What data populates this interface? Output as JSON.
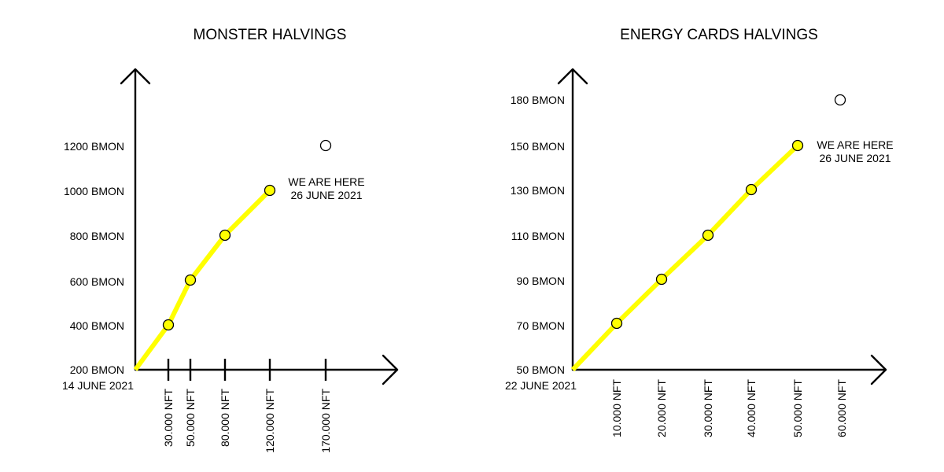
{
  "colors": {
    "line": "#ffff00",
    "marker_fill": "#ffff00",
    "axis": "#000000"
  },
  "chart_data": [
    {
      "type": "line",
      "title": "MONSTER HALVINGS",
      "x_tick_labels": [
        "30.000 NFT",
        "50.000 NFT",
        "80.000 NFT",
        "120.000 NFT",
        "170.000 NFT"
      ],
      "y_tick_labels": [
        "200 BMON",
        "400 BMON",
        "600 BMON",
        "800 BMON",
        "1000 BMON",
        "1200 BMON"
      ],
      "origin_date": "14 JUNE 2021",
      "series": [
        {
          "x": [
            0,
            30000,
            50000,
            80000,
            120000
          ],
          "y": [
            200,
            400,
            600,
            800,
            1000
          ]
        }
      ],
      "next_point": {
        "x": 170000,
        "y": 1200
      },
      "annotation": {
        "line1": "WE ARE HERE",
        "line2": "26 JUNE 2021"
      }
    },
    {
      "type": "line",
      "title": "ENERGY CARDS HALVINGS",
      "x_tick_labels": [
        "10.000 NFT",
        "20.000 NFT",
        "30.000 NFT",
        "40.000 NFT",
        "50.000 NFT",
        "60.000 NFT"
      ],
      "y_tick_labels": [
        "50 BMON",
        "70 BMON",
        "90 BMON",
        "110 BMON",
        "130 BMON",
        "150 BMON",
        "180 BMON"
      ],
      "origin_date": "22 JUNE 2021",
      "series": [
        {
          "x": [
            0,
            10000,
            20000,
            30000,
            40000,
            50000
          ],
          "y": [
            50,
            70,
            90,
            110,
            130,
            150
          ]
        }
      ],
      "next_point": {
        "x": 60000,
        "y": 180
      },
      "annotation": {
        "line1": "WE ARE HERE",
        "line2": "26 JUNE 2021"
      }
    }
  ]
}
